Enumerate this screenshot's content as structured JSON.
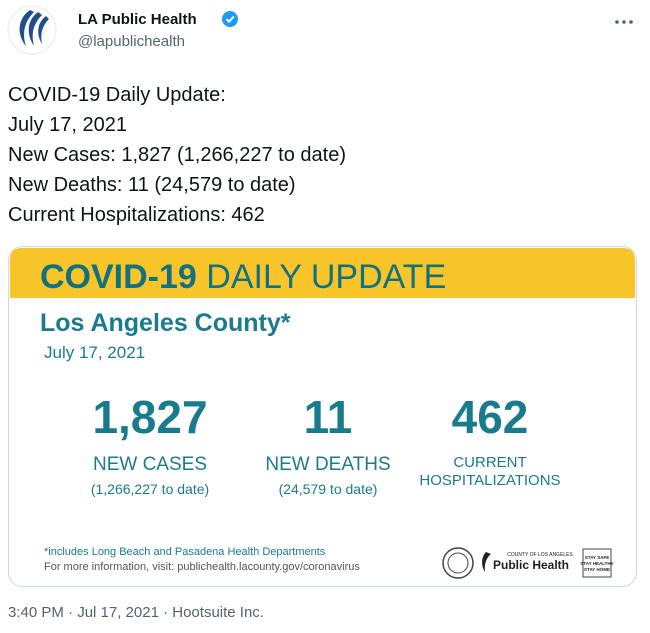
{
  "author": {
    "name": "LA Public Health",
    "handle": "@lapublichealth"
  },
  "tweet": {
    "lines": [
      "COVID-19 Daily Update:",
      "July 17, 2021",
      "New Cases: 1,827 (1,266,227 to date)",
      "New Deaths: 11 (24,579 to date)",
      "Current Hospitalizations: 462"
    ]
  },
  "card": {
    "title_bold": "COVID-19",
    "title_rest": "DAILY UPDATE",
    "subtitle": "Los Angeles County*",
    "date": "July 17, 2021",
    "stats": [
      {
        "number": "1,827",
        "label": [
          "NEW CASES"
        ],
        "note": "(1,266,227 to date)"
      },
      {
        "number": "11",
        "label": [
          "NEW DEATHS"
        ],
        "note": "(24,579 to date)"
      },
      {
        "number": "462",
        "label": [
          "CURRENT",
          "HOSPITALIZATIONS"
        ]
      }
    ],
    "footnote": "*includes Long Beach and Pasadena Health Departments",
    "info": "For more information, visit: publichealth.lacounty.gov/coronavirus",
    "logo_small": "COUNTY OF LOS ANGELES",
    "logo_name": "Public Health",
    "badge": [
      "STAY SAFE",
      "STAY HEALTHY",
      "STAY HOME"
    ]
  },
  "footer": "3:40 PM · Jul 17, 2021 · Hootsuite Inc."
}
